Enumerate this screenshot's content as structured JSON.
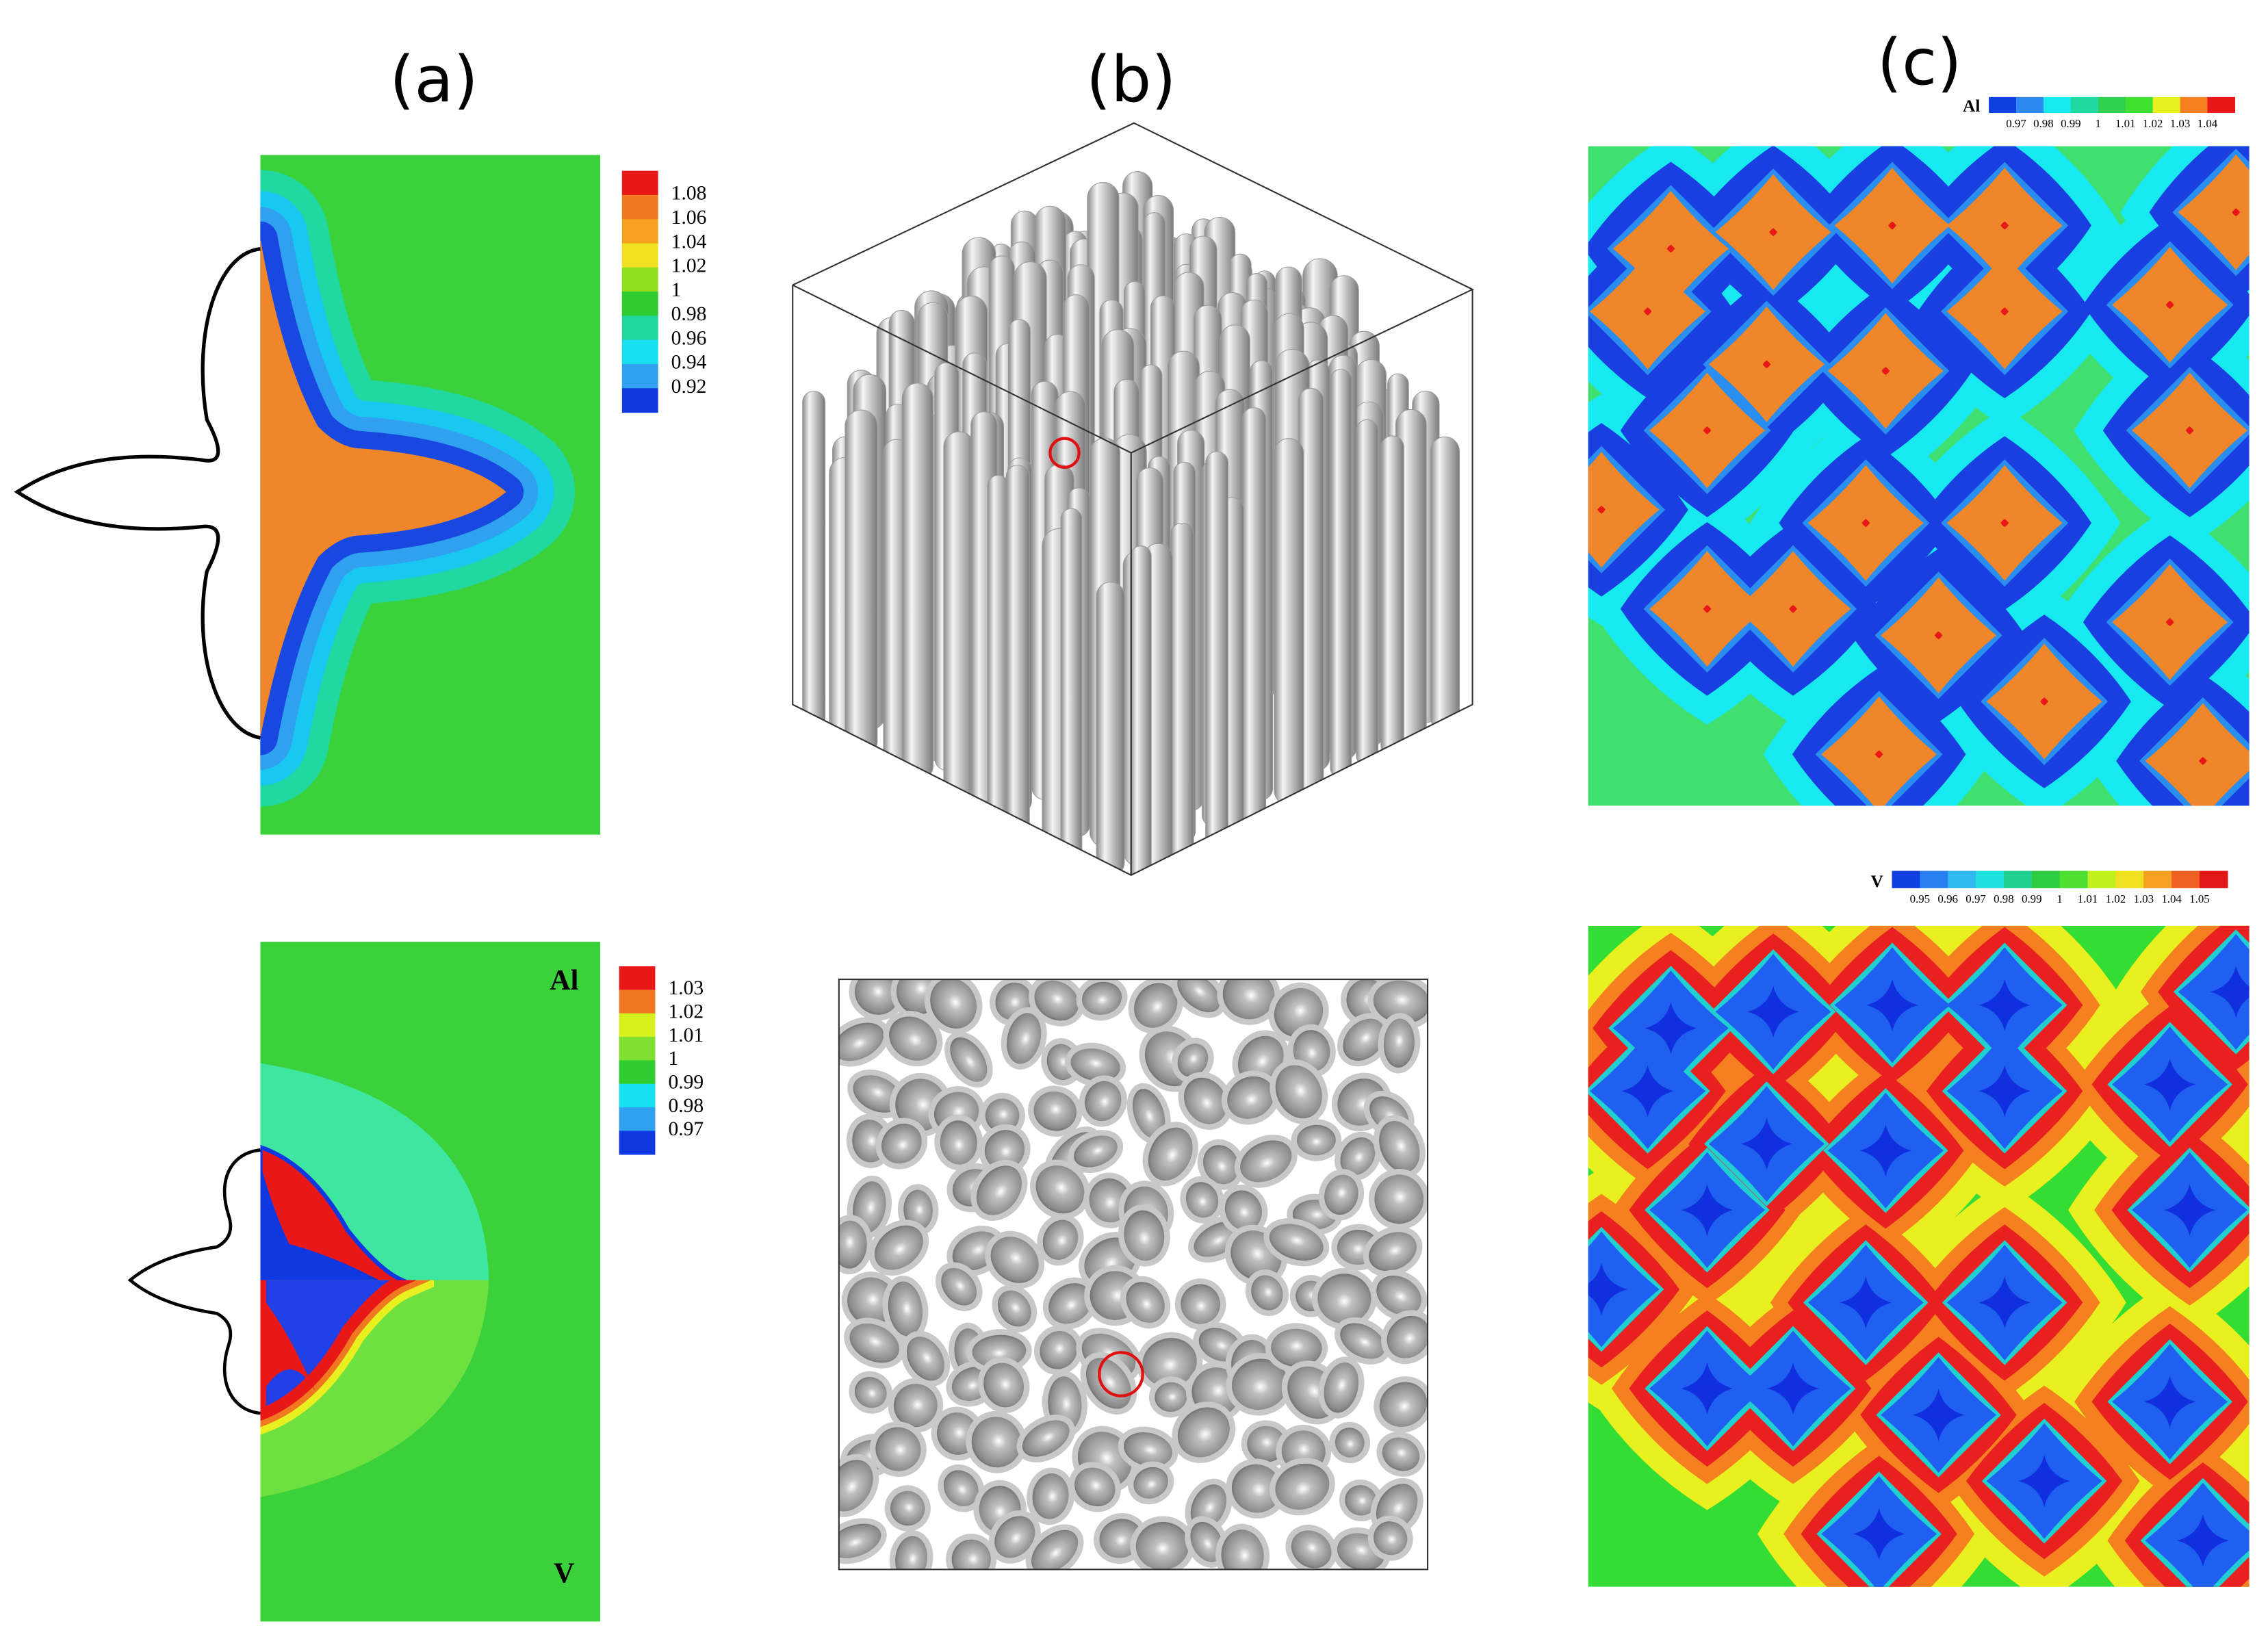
{
  "panel_labels": [
    "(a)",
    "(b)",
    "(c)"
  ],
  "a_top_colorbar": {
    "ticks": [
      "1.08",
      "1.06",
      "1.04",
      "1.02",
      "1",
      "0.98",
      "0.96",
      "0.94",
      "0.92"
    ],
    "colors": [
      "#e81818",
      "#f07820",
      "#f5a020",
      "#f0e020",
      "#90e020",
      "#30cc30",
      "#20d8a0",
      "#18e0f0",
      "#30a0f0",
      "#1038e0"
    ]
  },
  "a_bottom": {
    "top_label": "Al",
    "bottom_label": "V"
  },
  "a_bottom_colorbar": {
    "ticks": [
      "1.03",
      "1.02",
      "1.01",
      "1",
      "0.99",
      "0.98",
      "0.97"
    ],
    "colors": [
      "#e81818",
      "#f07820",
      "#d8f020",
      "#80e030",
      "#30cc30",
      "#18e0f0",
      "#30a0f0",
      "#1038e0"
    ]
  },
  "c_top_colorbar": {
    "title": "Al",
    "ticks": [
      "0.97",
      "0.98",
      "0.99",
      "1",
      "1.01",
      "1.02",
      "1.03",
      "1.04"
    ],
    "colors": [
      "#1040e0",
      "#2a8af0",
      "#18e8f0",
      "#20d8a0",
      "#30d050",
      "#40e030",
      "#e8f020",
      "#f58020",
      "#e81818"
    ]
  },
  "c_bottom_colorbar": {
    "title": "V",
    "ticks": [
      "0.95",
      "0.96",
      "0.97",
      "0.98",
      "0.99",
      "1",
      "1.01",
      "1.02",
      "1.03",
      "1.04",
      "1.05"
    ],
    "colors": [
      "#1040e0",
      "#2a80f0",
      "#30b8f0",
      "#20e0e0",
      "#20d090",
      "#2ecc40",
      "#4ee030",
      "#c0f020",
      "#f0e020",
      "#f5a020",
      "#f06020",
      "#e01818"
    ]
  }
}
